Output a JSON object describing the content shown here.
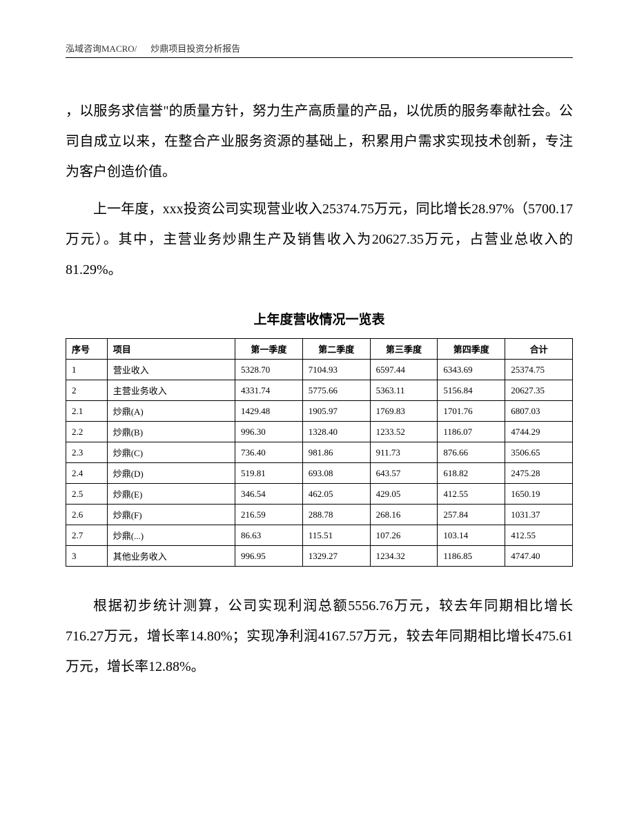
{
  "header": {
    "company": "泓域咨询MACRO/",
    "report_title": "炒鼎项目投资分析报告"
  },
  "paragraphs": {
    "p1": "，以服务求信誉\"的质量方针，努力生产高质量的产品，以优质的服务奉献社会。公司自成立以来，在整合产业服务资源的基础上，积累用户需求实现技术创新，专注为客户创造价值。",
    "p2": "上一年度，xxx投资公司实现营业收入25374.75万元，同比增长28.97%（5700.17万元）。其中，主营业务炒鼎生产及销售收入为20627.35万元，占营业总收入的81.29%。",
    "p3": "根据初步统计测算，公司实现利润总额5556.76万元，较去年同期相比增长716.27万元，增长率14.80%；实现净利润4167.57万元，较去年同期相比增长475.61万元，增长率12.88%。"
  },
  "table": {
    "title": "上年度营收情况一览表",
    "headers": {
      "seq": "序号",
      "item": "项目",
      "q1": "第一季度",
      "q2": "第二季度",
      "q3": "第三季度",
      "q4": "第四季度",
      "total": "合计"
    },
    "rows": [
      {
        "seq": "1",
        "item": "营业收入",
        "q1": "5328.70",
        "q2": "7104.93",
        "q3": "6597.44",
        "q4": "6343.69",
        "total": "25374.75"
      },
      {
        "seq": "2",
        "item": "主营业务收入",
        "q1": "4331.74",
        "q2": "5775.66",
        "q3": "5363.11",
        "q4": "5156.84",
        "total": "20627.35"
      },
      {
        "seq": "2.1",
        "item": "炒鼎(A)",
        "q1": "1429.48",
        "q2": "1905.97",
        "q3": "1769.83",
        "q4": "1701.76",
        "total": "6807.03"
      },
      {
        "seq": "2.2",
        "item": "炒鼎(B)",
        "q1": "996.30",
        "q2": "1328.40",
        "q3": "1233.52",
        "q4": "1186.07",
        "total": "4744.29"
      },
      {
        "seq": "2.3",
        "item": "炒鼎(C)",
        "q1": "736.40",
        "q2": "981.86",
        "q3": "911.73",
        "q4": "876.66",
        "total": "3506.65"
      },
      {
        "seq": "2.4",
        "item": "炒鼎(D)",
        "q1": "519.81",
        "q2": "693.08",
        "q3": "643.57",
        "q4": "618.82",
        "total": "2475.28"
      },
      {
        "seq": "2.5",
        "item": "炒鼎(E)",
        "q1": "346.54",
        "q2": "462.05",
        "q3": "429.05",
        "q4": "412.55",
        "total": "1650.19"
      },
      {
        "seq": "2.6",
        "item": "炒鼎(F)",
        "q1": "216.59",
        "q2": "288.78",
        "q3": "268.16",
        "q4": "257.84",
        "total": "1031.37"
      },
      {
        "seq": "2.7",
        "item": "炒鼎(...)",
        "q1": "86.63",
        "q2": "115.51",
        "q3": "107.26",
        "q4": "103.14",
        "total": "412.55"
      },
      {
        "seq": "3",
        "item": "其他业务收入",
        "q1": "996.95",
        "q2": "1329.27",
        "q3": "1234.32",
        "q4": "1186.85",
        "total": "4747.40"
      }
    ]
  },
  "styles": {
    "background_color": "#ffffff",
    "text_color": "#000000",
    "border_color": "#000000",
    "body_fontsize": 20,
    "table_fontsize": 13,
    "header_fontsize": 13,
    "title_fontsize": 19,
    "line_height": 2.2
  }
}
